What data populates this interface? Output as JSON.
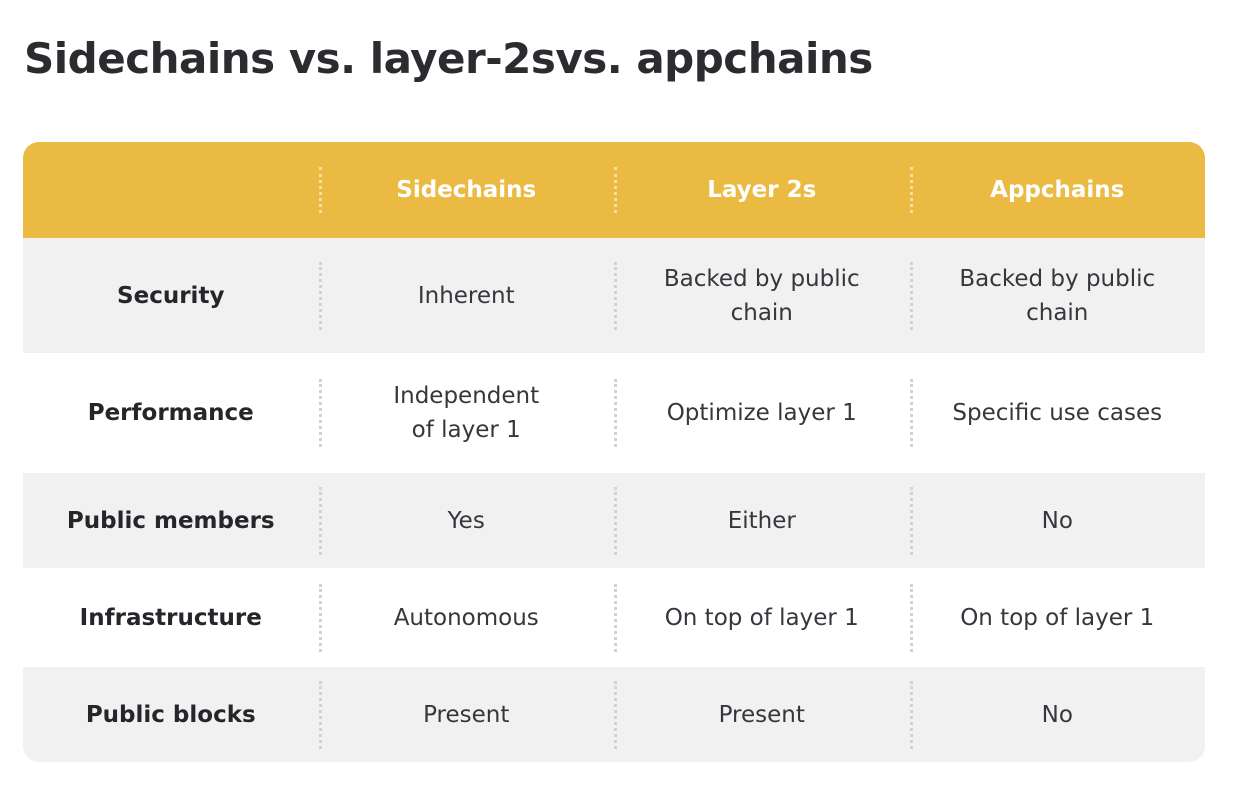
{
  "title": "Sidechains vs. layer-2svs. appchains",
  "table": {
    "columns": [
      "",
      "Sidechains",
      "Layer 2s",
      "Appchains"
    ],
    "rows": [
      {
        "label": "Security",
        "values": [
          "Inherent",
          "Backed by public chain",
          "Backed by public chain"
        ]
      },
      {
        "label": "Performance",
        "values": [
          "Independent of layer 1",
          "Optimize layer 1",
          "Specific use cases"
        ]
      },
      {
        "label": "Public members",
        "values": [
          "Yes",
          "Either",
          "No"
        ]
      },
      {
        "label": "Infrastructure",
        "values": [
          "Autonomous",
          "On top of layer 1",
          "On top of layer 1"
        ]
      },
      {
        "label": "Public blocks",
        "values": [
          "Present",
          "Present",
          "No"
        ]
      }
    ]
  },
  "colors": {
    "header_background": "#ebba42",
    "shaded_row": "#f1f1f1",
    "header_text": "#ffffff",
    "body_text": "#34373b"
  }
}
